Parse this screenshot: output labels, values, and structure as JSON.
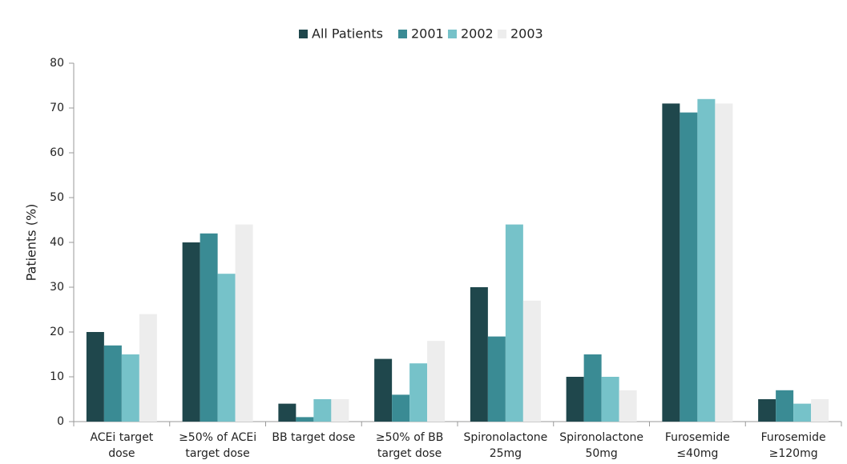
{
  "chart_data": {
    "type": "bar",
    "y_label": "Patients (%)",
    "categories": [
      [
        "ACEi target",
        "dose"
      ],
      [
        "≥50% of ACEi",
        "target dose"
      ],
      [
        "BB target dose"
      ],
      [
        "≥50% of BB",
        "target dose"
      ],
      [
        "Spironolactone",
        "25mg"
      ],
      [
        "Spironolactone",
        "50mg"
      ],
      [
        "Furosemide",
        "≤40mg"
      ],
      [
        "Furosemide",
        "≥120mg"
      ]
    ],
    "series": [
      {
        "name": "All Patients",
        "color": "#1f474c",
        "values": [
          20,
          40,
          4,
          14,
          30,
          10,
          71,
          5
        ]
      },
      {
        "name": "2001",
        "color": "#3a8b94",
        "values": [
          17,
          42,
          1,
          6,
          19,
          15,
          69,
          7
        ]
      },
      {
        "name": "2002",
        "color": "#76c2c9",
        "values": [
          15,
          33,
          5,
          13,
          44,
          10,
          72,
          4
        ]
      },
      {
        "name": "2003",
        "color": "#ededed",
        "values": [
          24,
          44,
          5,
          18,
          27,
          7,
          71,
          5
        ]
      }
    ],
    "ylim": [
      0,
      80
    ],
    "yticks": [
      0,
      10,
      20,
      30,
      40,
      50,
      60,
      70,
      80
    ],
    "legend": "top"
  }
}
